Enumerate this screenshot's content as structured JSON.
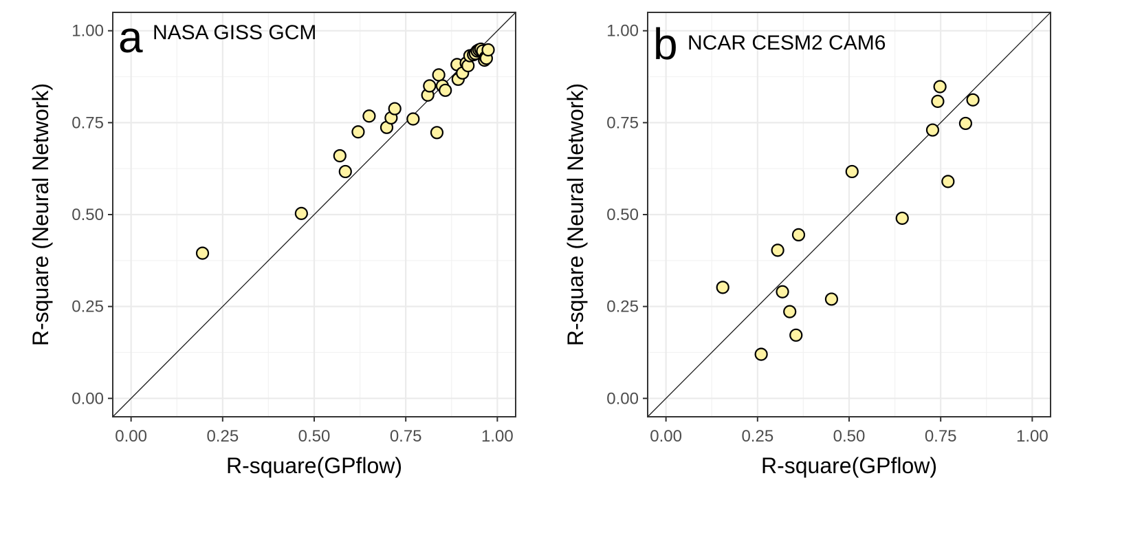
{
  "chart_data": [
    {
      "type": "scatter",
      "panel_letter": "a",
      "title": "NASA GISS GCM",
      "xlabel": "R-square(GPflow)",
      "ylabel": "R-square (Neural Network)",
      "xlim": [
        -0.05,
        1.05
      ],
      "ylim": [
        -0.05,
        1.05
      ],
      "xticks": [
        "0.00",
        "0.25",
        "0.50",
        "0.75",
        "1.00"
      ],
      "yticks": [
        "0.00",
        "0.25",
        "0.50",
        "0.75",
        "1.00"
      ],
      "grid": true,
      "reference_line": "y = x",
      "point_color": "#fff3a3",
      "x": [
        0.195,
        0.465,
        0.57,
        0.585,
        0.62,
        0.65,
        0.698,
        0.71,
        0.72,
        0.77,
        0.81,
        0.815,
        0.835,
        0.84,
        0.85,
        0.858,
        0.89,
        0.893,
        0.905,
        0.915,
        0.92,
        0.925,
        0.935,
        0.94,
        0.945,
        0.95,
        0.955,
        0.96,
        0.965,
        0.968,
        0.97,
        0.975
      ],
      "y": [
        0.395,
        0.503,
        0.66,
        0.617,
        0.725,
        0.768,
        0.737,
        0.763,
        0.788,
        0.76,
        0.825,
        0.85,
        0.723,
        0.88,
        0.85,
        0.838,
        0.908,
        0.868,
        0.885,
        0.912,
        0.905,
        0.932,
        0.935,
        0.938,
        0.945,
        0.948,
        0.95,
        0.945,
        0.92,
        0.928,
        0.925,
        0.948
      ]
    },
    {
      "type": "scatter",
      "panel_letter": "b",
      "title": "NCAR CESM2 CAM6",
      "xlabel": "R-square(GPflow)",
      "ylabel": "R-square (Neural Network)",
      "xlim": [
        -0.05,
        1.05
      ],
      "ylim": [
        -0.05,
        1.05
      ],
      "xticks": [
        "0.00",
        "0.25",
        "0.50",
        "0.75",
        "1.00"
      ],
      "yticks": [
        "0.00",
        "0.25",
        "0.50",
        "0.75",
        "1.00"
      ],
      "grid": true,
      "reference_line": "y = x",
      "point_color": "#fff3a3",
      "x": [
        0.155,
        0.26,
        0.305,
        0.318,
        0.338,
        0.355,
        0.362,
        0.452,
        0.508,
        0.645,
        0.728,
        0.742,
        0.748,
        0.77,
        0.818,
        0.838
      ],
      "y": [
        0.302,
        0.12,
        0.403,
        0.29,
        0.236,
        0.172,
        0.445,
        0.27,
        0.617,
        0.49,
        0.73,
        0.808,
        0.848,
        0.59,
        0.748,
        0.812
      ]
    }
  ]
}
